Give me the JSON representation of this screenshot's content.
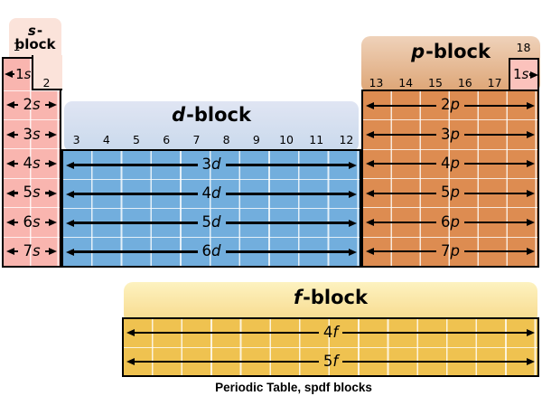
{
  "caption": "Periodic Table, spdf blocks",
  "colors": {
    "line": "#000000",
    "grid": "rgba(255,255,255,0.8)",
    "s_bg": "#fbe3da",
    "s_cell": "#f9b5af",
    "he_cell": "#fbc2bc",
    "d_bg_top": "#e0e5f3",
    "d_bg_bottom": "#c9d9ec",
    "d_cell": "#72aedd",
    "p_bg_top": "#efd2ba",
    "p_bg_bottom": "#dda474",
    "p_cell": "#dd8c51",
    "f_bg_top": "#fdf2c0",
    "f_bg_bottom": "#f7d98a",
    "f_cell": "#efc250"
  },
  "s_block": {
    "title_letter": "s",
    "title_rest": "-block",
    "group1": "1",
    "group2": "2",
    "rows": [
      {
        "num": "1",
        "letter": "s",
        "arrows": "left"
      },
      {
        "num": "2",
        "letter": "s",
        "arrows": "both"
      },
      {
        "num": "3",
        "letter": "s",
        "arrows": "both"
      },
      {
        "num": "4",
        "letter": "s",
        "arrows": "both"
      },
      {
        "num": "5",
        "letter": "s",
        "arrows": "both"
      },
      {
        "num": "6",
        "letter": "s",
        "arrows": "both"
      },
      {
        "num": "7",
        "letter": "s",
        "arrows": "both"
      }
    ]
  },
  "d_block": {
    "title_letter": "d",
    "title_rest": "-block",
    "groups": [
      "3",
      "4",
      "5",
      "6",
      "7",
      "8",
      "9",
      "10",
      "11",
      "12"
    ],
    "rows": [
      {
        "num": "3",
        "letter": "d",
        "arrows": "both"
      },
      {
        "num": "4",
        "letter": "d",
        "arrows": "both"
      },
      {
        "num": "5",
        "letter": "d",
        "arrows": "both"
      },
      {
        "num": "6",
        "letter": "d",
        "arrows": "both"
      }
    ]
  },
  "p_block": {
    "title_letter": "p",
    "title_rest": "-block",
    "groups": [
      "13",
      "14",
      "15",
      "16",
      "17"
    ],
    "group18": "18",
    "he_rows": [
      {
        "num": "1",
        "letter": "s",
        "arrows": "right"
      }
    ],
    "rows": [
      {
        "num": "2",
        "letter": "p",
        "arrows": "both"
      },
      {
        "num": "3",
        "letter": "p",
        "arrows": "both"
      },
      {
        "num": "4",
        "letter": "p",
        "arrows": "both"
      },
      {
        "num": "5",
        "letter": "p",
        "arrows": "both"
      },
      {
        "num": "6",
        "letter": "p",
        "arrows": "both"
      },
      {
        "num": "7",
        "letter": "p",
        "arrows": "both"
      }
    ]
  },
  "f_block": {
    "title_letter": "f",
    "title_rest": "-block",
    "rows": [
      {
        "num": "4",
        "letter": "f",
        "arrows": "both"
      },
      {
        "num": "5",
        "letter": "f",
        "arrows": "both"
      }
    ]
  }
}
